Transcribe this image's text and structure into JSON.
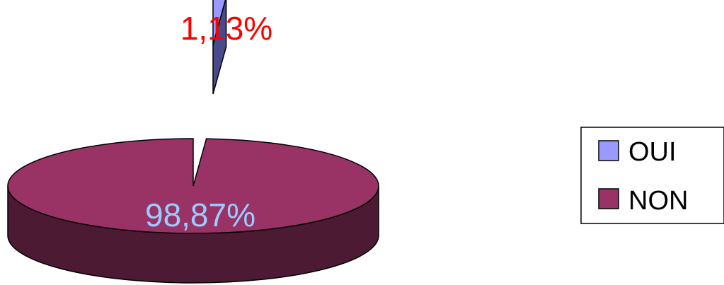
{
  "chart_data": {
    "type": "pie",
    "style": "3d-exploded",
    "slices": [
      {
        "name": "OUI",
        "value": 1.13,
        "label": "1,13%",
        "color": "#9999ff",
        "side_color": "#4a4a8a",
        "label_color": "#ff0000"
      },
      {
        "name": "NON",
        "value": 98.87,
        "label": "98,87%",
        "color": "#993366",
        "side_color": "#4d1a33",
        "label_color": "#99ccff"
      }
    ],
    "legend": {
      "position": "right",
      "entries": [
        "OUI",
        "NON"
      ]
    }
  }
}
